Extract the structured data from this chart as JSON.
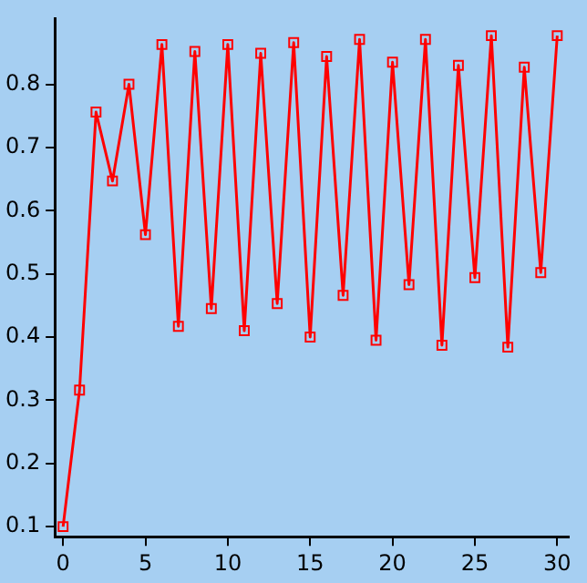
{
  "chart_data": {
    "type": "line",
    "x": [
      0,
      1,
      2,
      3,
      4,
      5,
      6,
      7,
      8,
      9,
      10,
      11,
      12,
      13,
      14,
      15,
      16,
      17,
      18,
      19,
      20,
      21,
      22,
      23,
      24,
      25,
      26,
      27,
      28,
      29,
      30
    ],
    "series": [
      {
        "color": "#ff0000",
        "values": [
          0.1,
          0.316,
          0.756,
          0.647,
          0.8,
          0.562,
          0.863,
          0.417,
          0.852,
          0.445,
          0.863,
          0.41,
          0.849,
          0.453,
          0.866,
          0.4,
          0.844,
          0.466,
          0.871,
          0.395,
          0.835,
          0.483,
          0.871,
          0.387,
          0.83,
          0.494,
          0.877,
          0.384,
          0.827,
          0.502,
          0.877
        ]
      }
    ],
    "xlim": [
      -0.5,
      30.7
    ],
    "xticks": [
      0,
      5,
      10,
      15,
      20,
      25,
      30
    ],
    "ylim": [
      0.084,
      0.904
    ],
    "yticks": [
      0.1,
      0.2,
      0.3,
      0.4,
      0.5,
      0.6,
      0.7,
      0.8
    ],
    "marker": "square",
    "line_style": "solid",
    "grid": false,
    "legend": false
  }
}
